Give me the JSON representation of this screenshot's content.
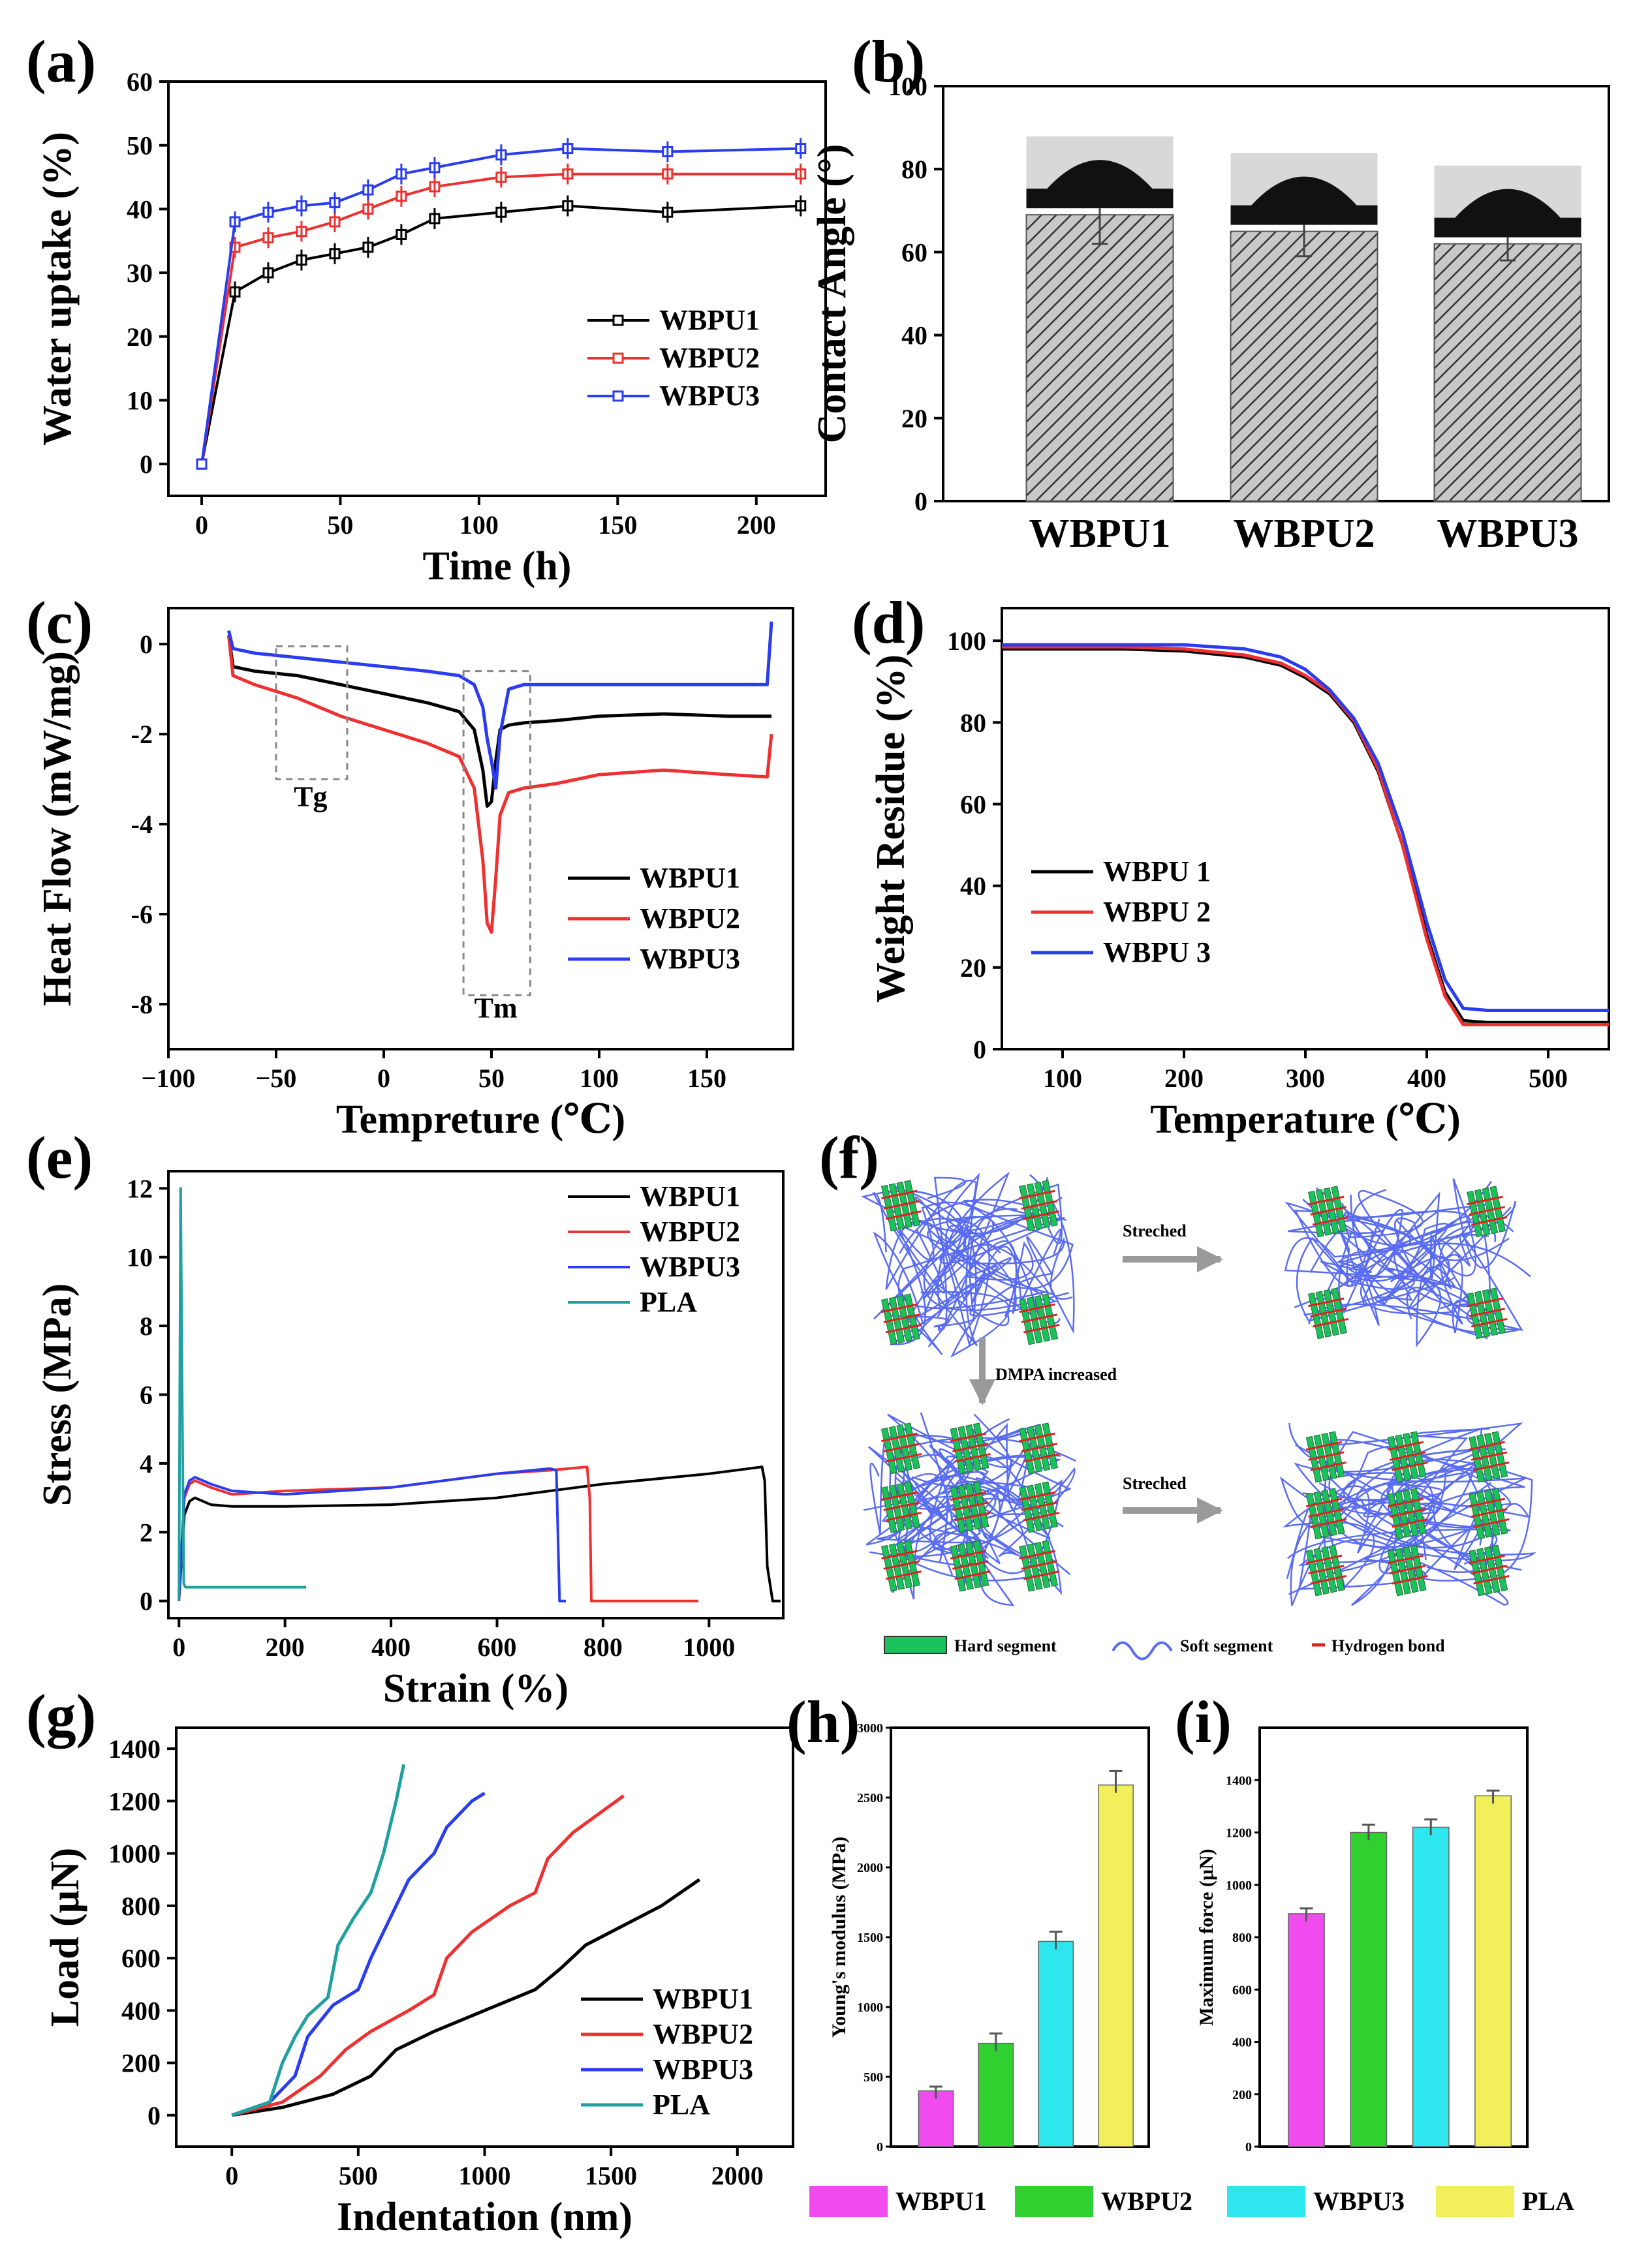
{
  "figure": {
    "panel_labels": [
      "(a)",
      "(b)",
      "(c)",
      "(d)",
      "(e)",
      "(f)",
      "(g)",
      "(h)",
      "(i)"
    ],
    "f_schematic": {
      "arrow_stretched_1": "Streched",
      "arrow_dmpa": "DMPA increased",
      "arrow_stretched_2": "Streched",
      "legend": [
        "Hard segment",
        "Soft segment",
        "Hydrogen bond"
      ],
      "colors": {
        "hard": "#19c25a",
        "soft": "#5a6cf0",
        "hbond": "#e02020"
      }
    },
    "hi_legend": [
      "WBPU1",
      "WBPU2",
      "WBPU3",
      "PLA"
    ],
    "colors": {
      "WBPU1": "#000000",
      "WBPU2": "#ee3030",
      "WBPU3": "#2a3cf0",
      "PLA": "#20a0a0",
      "h_magenta": "#ef4bef",
      "h_green": "#2fd02f",
      "h_cyan": "#2ee6ee",
      "h_yellow": "#f1f05a"
    }
  },
  "chart_data": [
    {
      "panel": "(a)",
      "type": "line",
      "xlabel": "Time (h)",
      "ylabel": "Water uptake (%)",
      "xlim": [
        -12,
        225
      ],
      "ylim": [
        -5,
        60
      ],
      "xticks": [
        "0",
        "50",
        "100",
        "150",
        "200"
      ],
      "xtick_values": [
        0,
        50,
        100,
        150,
        200
      ],
      "yticks": [
        "0",
        "10",
        "20",
        "30",
        "40",
        "50",
        "60"
      ],
      "ytick_values": [
        0,
        10,
        20,
        30,
        40,
        50,
        60
      ],
      "x": [
        0,
        12,
        24,
        36,
        48,
        60,
        72,
        84,
        108,
        132,
        168,
        216
      ],
      "series": [
        {
          "name": "WBPU1",
          "values": [
            0,
            27,
            30,
            32,
            33,
            34,
            36,
            38.5,
            39.5,
            40.5,
            39.5,
            40.5
          ]
        },
        {
          "name": "WBPU2",
          "values": [
            0,
            34,
            35.5,
            36.5,
            38,
            40,
            42,
            43.5,
            45,
            45.5,
            45.5,
            45.5
          ]
        },
        {
          "name": "WBPU3",
          "values": [
            0,
            38,
            39.5,
            40.5,
            41,
            43,
            45.5,
            46.5,
            48.5,
            49.5,
            49,
            49.5
          ]
        }
      ]
    },
    {
      "panel": "(b)",
      "type": "bar",
      "ylabel": "Contact Angle (°)",
      "ylim": [
        0,
        100
      ],
      "yticks": [
        "0",
        "20",
        "40",
        "60",
        "80",
        "100"
      ],
      "ytick_values": [
        0,
        20,
        40,
        60,
        80,
        100
      ],
      "categories": [
        "WBPU1",
        "WBPU2",
        "WBPU3"
      ],
      "values": [
        69,
        65,
        62
      ],
      "errors": [
        7,
        6,
        4
      ]
    },
    {
      "panel": "(c)",
      "type": "line",
      "xlabel": "Tempreture (℃)",
      "ylabel": "Heat Flow (mW/mg)",
      "xlim": [
        -100,
        190
      ],
      "ylim": [
        -9,
        0.8
      ],
      "xticks": [
        "−100",
        "−50",
        "0",
        "50",
        "100",
        "150"
      ],
      "xtick_values": [
        -100,
        -50,
        0,
        50,
        100,
        150
      ],
      "yticks": [
        "0",
        "-2",
        "-4",
        "-6",
        "-8"
      ],
      "ytick_values": [
        0,
        -2,
        -4,
        -6,
        -8
      ],
      "annotations": [
        "Tg",
        "Tm"
      ],
      "x": [
        -72,
        -70,
        -60,
        -40,
        -20,
        0,
        20,
        35,
        42,
        46,
        48,
        50,
        52,
        54,
        58,
        65,
        80,
        100,
        130,
        160,
        178,
        180
      ],
      "series": [
        {
          "name": "WBPU1",
          "values": [
            0.2,
            -0.5,
            -0.6,
            -0.7,
            -0.9,
            -1.1,
            -1.3,
            -1.5,
            -1.9,
            -2.8,
            -3.6,
            -3.5,
            -2.6,
            -1.9,
            -1.8,
            -1.75,
            -1.7,
            -1.6,
            -1.55,
            -1.6,
            -1.6,
            -1.6
          ]
        },
        {
          "name": "WBPU2",
          "values": [
            0.2,
            -0.7,
            -0.9,
            -1.2,
            -1.6,
            -1.9,
            -2.2,
            -2.5,
            -3.2,
            -4.8,
            -6.2,
            -6.4,
            -5.2,
            -3.8,
            -3.3,
            -3.2,
            -3.1,
            -2.9,
            -2.8,
            -2.9,
            -2.95,
            -2.0
          ]
        },
        {
          "name": "WBPU3",
          "values": [
            0.3,
            -0.1,
            -0.2,
            -0.3,
            -0.4,
            -0.5,
            -0.6,
            -0.7,
            -0.9,
            -1.4,
            -2.1,
            -2.6,
            -3.2,
            -2.0,
            -1.0,
            -0.9,
            -0.9,
            -0.9,
            -0.9,
            -0.9,
            -0.9,
            0.5
          ]
        }
      ]
    },
    {
      "panel": "(d)",
      "type": "line",
      "xlabel": "Temperature (℃)",
      "ylabel": "Weight Residue (%)",
      "xlim": [
        50,
        550
      ],
      "ylim": [
        0,
        108
      ],
      "xticks": [
        "100",
        "200",
        "300",
        "400",
        "500"
      ],
      "xtick_values": [
        100,
        200,
        300,
        400,
        500
      ],
      "yticks": [
        "0",
        "20",
        "40",
        "60",
        "80",
        "100"
      ],
      "ytick_values": [
        0,
        20,
        40,
        60,
        80,
        100
      ],
      "x": [
        50,
        100,
        150,
        200,
        250,
        280,
        300,
        320,
        340,
        360,
        380,
        400,
        415,
        430,
        450,
        500,
        550
      ],
      "series": [
        {
          "name": "WBPU 1",
          "values": [
            98,
            98,
            98,
            97.5,
            96,
            94,
            91,
            87,
            80,
            68,
            50,
            28,
            14,
            7,
            6.5,
            6.5,
            6.5
          ]
        },
        {
          "name": "WBPU 2",
          "values": [
            98.5,
            98.5,
            98.5,
            98,
            96.5,
            94.5,
            91.5,
            87.5,
            80.5,
            68.5,
            50,
            27,
            13,
            6,
            6,
            6,
            6
          ]
        },
        {
          "name": "WBPU 3",
          "values": [
            99,
            99,
            99,
            99,
            98,
            96,
            93,
            88,
            81,
            70,
            53,
            31,
            17,
            10,
            9.5,
            9.5,
            9.5
          ]
        }
      ]
    },
    {
      "panel": "(e)",
      "type": "line",
      "xlabel": "Strain (%)",
      "ylabel": "Stress (MPa)",
      "xlim": [
        -20,
        1140
      ],
      "ylim": [
        -0.5,
        12.5
      ],
      "xticks": [
        "0",
        "200",
        "400",
        "600",
        "800",
        "1000"
      ],
      "xtick_values": [
        0,
        200,
        400,
        600,
        800,
        1000
      ],
      "yticks": [
        "0",
        "2",
        "4",
        "6",
        "8",
        "10",
        "12"
      ],
      "ytick_values": [
        0,
        2,
        4,
        6,
        8,
        10,
        12
      ],
      "series": [
        {
          "name": "WBPU1",
          "x": [
            0,
            10,
            20,
            30,
            60,
            100,
            200,
            400,
            600,
            800,
            1000,
            1100,
            1105,
            1110,
            1120,
            1135
          ],
          "values": [
            0,
            2.5,
            2.9,
            3.0,
            2.8,
            2.75,
            2.75,
            2.8,
            3.0,
            3.4,
            3.7,
            3.9,
            3.5,
            1.0,
            0,
            0
          ]
        },
        {
          "name": "WBPU2",
          "x": [
            0,
            10,
            20,
            30,
            60,
            100,
            200,
            400,
            600,
            700,
            770,
            775,
            778,
            800,
            980
          ],
          "values": [
            0,
            3.0,
            3.4,
            3.5,
            3.3,
            3.1,
            3.2,
            3.3,
            3.7,
            3.8,
            3.9,
            3.0,
            0,
            0,
            0
          ]
        },
        {
          "name": "WBPU3",
          "x": [
            0,
            10,
            20,
            30,
            60,
            100,
            200,
            400,
            600,
            700,
            712,
            718,
            730
          ],
          "values": [
            0,
            3.1,
            3.5,
            3.6,
            3.4,
            3.2,
            3.1,
            3.3,
            3.7,
            3.85,
            3.8,
            0,
            0
          ]
        },
        {
          "name": "PLA",
          "x": [
            0,
            3,
            6,
            9,
            12,
            240
          ],
          "values": [
            0,
            12,
            6,
            0.5,
            0.4,
            0.4
          ]
        }
      ]
    },
    {
      "panel": "(g)",
      "type": "line",
      "xlabel": "Indentation (nm)",
      "ylabel": "Load (μN)",
      "xlim": [
        -220,
        2220
      ],
      "ylim": [
        -120,
        1480
      ],
      "xticks": [
        "0",
        "500",
        "1000",
        "1500",
        "2000"
      ],
      "xtick_values": [
        0,
        500,
        1000,
        1500,
        2000
      ],
      "yticks": [
        "0",
        "200",
        "400",
        "600",
        "800",
        "1000",
        "1200",
        "1400"
      ],
      "ytick_values": [
        0,
        200,
        400,
        600,
        800,
        1000,
        1200,
        1400
      ],
      "series": [
        {
          "name": "WBPU1",
          "x": [
            0,
            200,
            400,
            550,
            650,
            800,
            1000,
            1200,
            1300,
            1400,
            1500,
            1700,
            1850
          ],
          "values": [
            0,
            30,
            80,
            150,
            250,
            320,
            400,
            480,
            560,
            650,
            700,
            800,
            900
          ]
        },
        {
          "name": "WBPU2",
          "x": [
            0,
            200,
            350,
            450,
            550,
            700,
            800,
            850,
            950,
            1100,
            1200,
            1250,
            1350,
            1450,
            1550
          ],
          "values": [
            0,
            50,
            150,
            250,
            320,
            400,
            460,
            600,
            700,
            800,
            850,
            980,
            1080,
            1150,
            1220
          ]
        },
        {
          "name": "WBPU3",
          "x": [
            0,
            150,
            250,
            300,
            400,
            500,
            550,
            650,
            700,
            800,
            850,
            950,
            1000
          ],
          "values": [
            0,
            50,
            150,
            300,
            420,
            480,
            600,
            800,
            900,
            1000,
            1100,
            1200,
            1230
          ]
        },
        {
          "name": "PLA",
          "x": [
            0,
            150,
            200,
            250,
            300,
            380,
            420,
            480,
            550,
            600,
            650,
            680
          ],
          "values": [
            0,
            50,
            200,
            300,
            380,
            450,
            650,
            750,
            850,
            1000,
            1200,
            1340
          ]
        }
      ]
    },
    {
      "panel": "(h)",
      "type": "bar",
      "ylabel": "Young's modulus (MPa)",
      "ylim": [
        0,
        3000
      ],
      "yticks": [
        "0",
        "500",
        "1000",
        "1500",
        "2000",
        "2500",
        "3000"
      ],
      "ytick_values": [
        0,
        500,
        1000,
        1500,
        2000,
        2500,
        3000
      ],
      "categories": [
        "WBPU1",
        "WBPU2",
        "WBPU3",
        "PLA"
      ],
      "values": [
        400,
        740,
        1470,
        2590
      ],
      "errors": [
        30,
        70,
        70,
        100
      ]
    },
    {
      "panel": "(i)",
      "type": "bar",
      "ylabel": "Maximum force (μN)",
      "ylim": [
        0,
        1600
      ],
      "yticks": [
        "0",
        "200",
        "400",
        "600",
        "800",
        "1000",
        "1200",
        "1400"
      ],
      "ytick_values": [
        0,
        200,
        400,
        600,
        800,
        1000,
        1200,
        1400
      ],
      "categories": [
        "WBPU1",
        "WBPU2",
        "WBPU3",
        "PLA"
      ],
      "values": [
        890,
        1200,
        1220,
        1340
      ],
      "errors": [
        20,
        30,
        30,
        20
      ]
    }
  ]
}
